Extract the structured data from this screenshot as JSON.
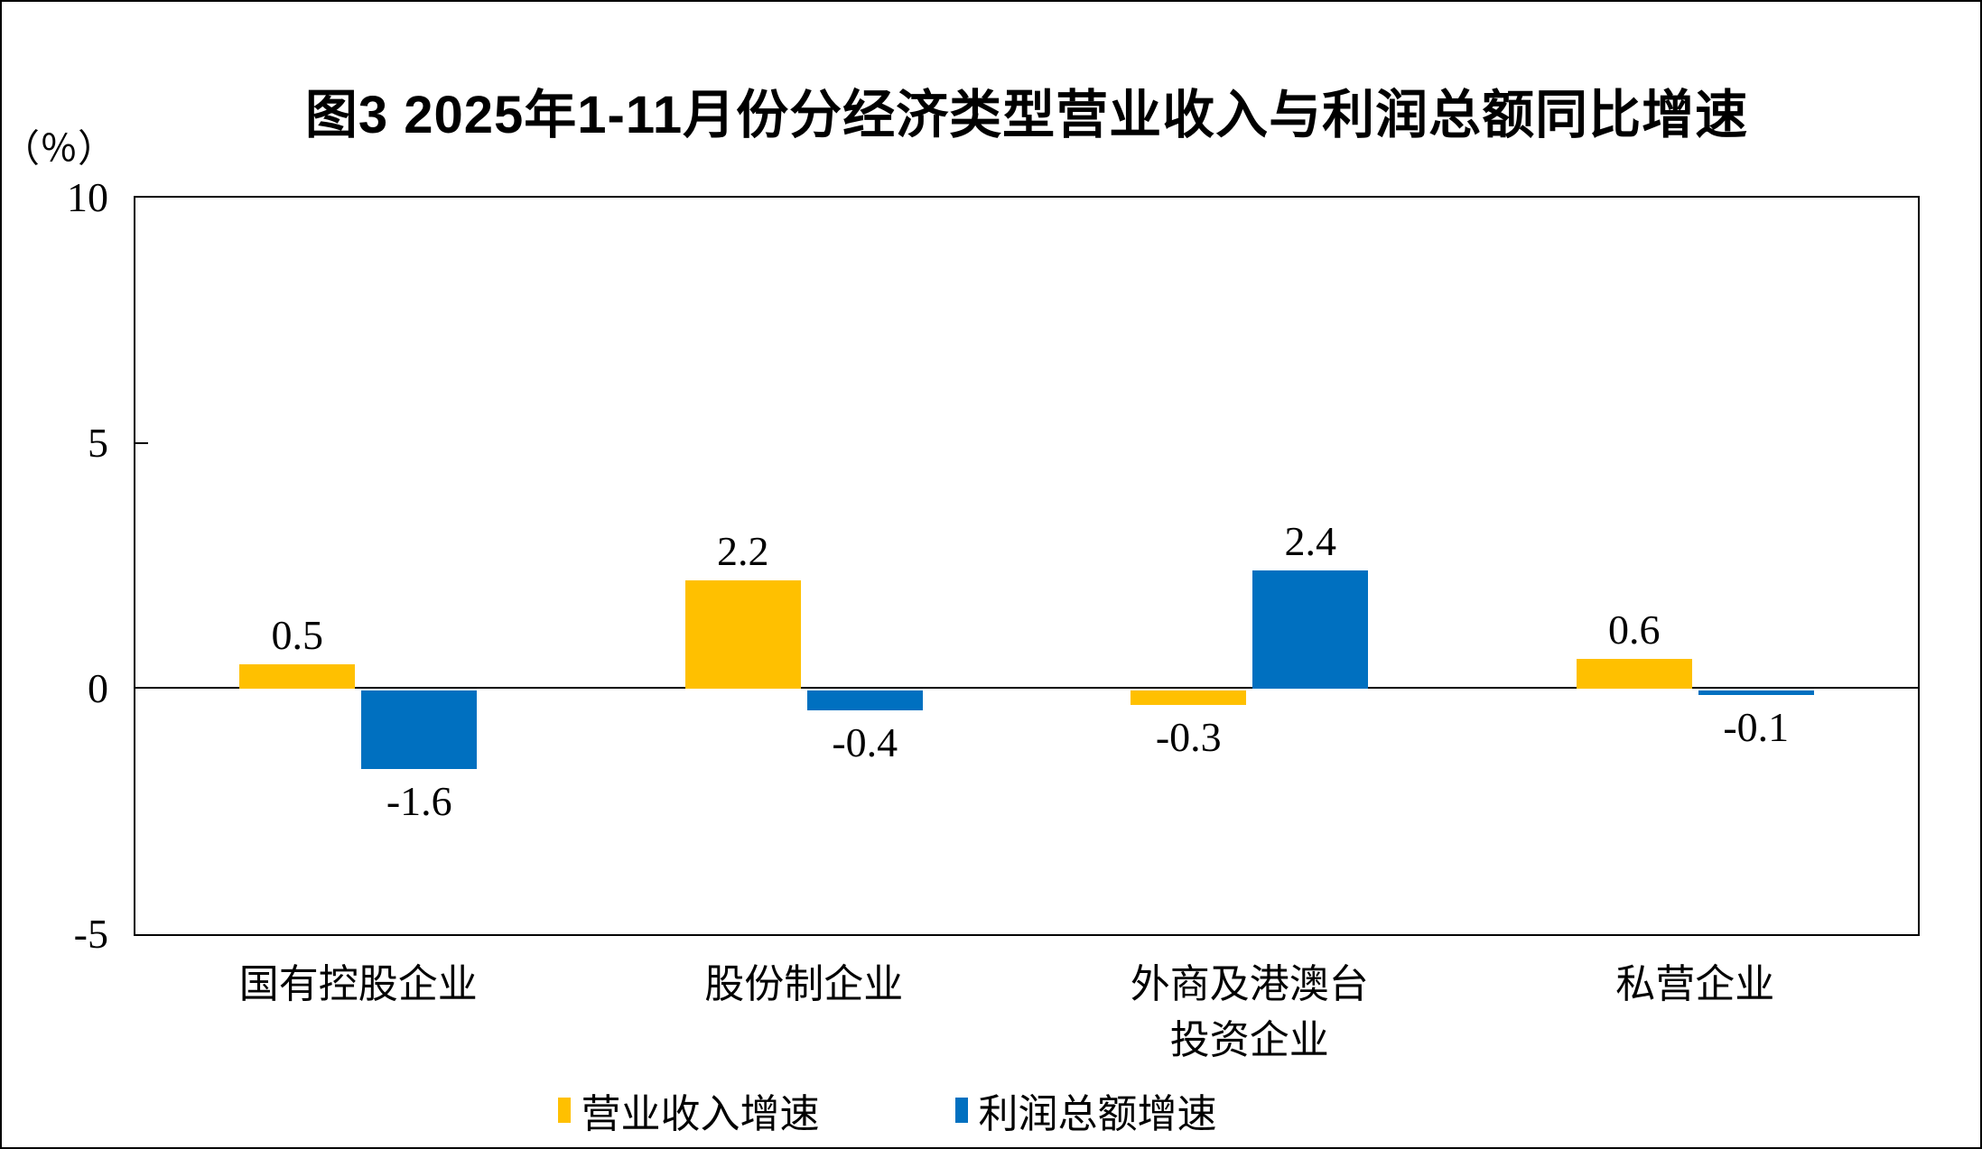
{
  "title": "图3 2025年1-11月份分经济类型营业收入与利润总额同比增速",
  "y_axis": {
    "unit_label": "（％）",
    "ticks": [
      10,
      5,
      0,
      -5
    ],
    "range": [
      -5,
      10
    ]
  },
  "legend": [
    {
      "label": "营业收入增速",
      "color": "#FFC000"
    },
    {
      "label": "利润总额增速",
      "color": "#0070C0"
    }
  ],
  "colors": {
    "revenue_bar": "#FFC000",
    "profit_bar": "#0070C0",
    "axis": "#000000",
    "background": "#FFFFFF"
  },
  "chart_data": {
    "type": "bar",
    "title": "图3 2025年1-11月份分经济类型营业收入与利润总额同比增速",
    "ylabel": "（％）",
    "ylim": [
      -5,
      10
    ],
    "yticks": [
      10,
      5,
      0,
      -5
    ],
    "grid": false,
    "legend_position": "bottom",
    "categories": [
      "国有控股企业",
      "股份制企业",
      "外商及港澳台\n投资企业",
      "私营企业"
    ],
    "series": [
      {
        "name": "营业收入增速",
        "color": "#FFC000",
        "values": [
          0.5,
          2.2,
          -0.3,
          0.6
        ]
      },
      {
        "name": "利润总额增速",
        "color": "#0070C0",
        "values": [
          -1.6,
          -0.4,
          2.4,
          -0.1
        ]
      }
    ],
    "data_labels": {
      "营业收入增速": [
        "0.5",
        "2.2",
        "-0.3",
        "0.6"
      ],
      "利润总额增速": [
        "-1.6",
        "-0.4",
        "2.4",
        "-0.1"
      ]
    }
  }
}
